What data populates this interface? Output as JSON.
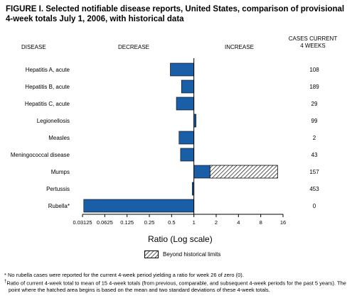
{
  "title": "FIGURE I. Selected notifiable disease reports, United States, comparison of provisional 4-week totals July 1, 2006, with historical data",
  "headers": {
    "disease": "DISEASE",
    "decrease": "DECREASE",
    "increase": "INCREASE",
    "cases_line1": "CASES CURRENT",
    "cases_line2": "4 WEEKS"
  },
  "legend": {
    "label": "Beyond historical limits"
  },
  "footnotes": {
    "star": "* No rubella cases were reported for the current 4-week period yielding a ratio for week 26 of zero (0).",
    "dagger_mark": "†",
    "dagger": "Ratio of current 4-week total to mean of 15 4-week totals (from previous, comparable, and subsequent 4-week periods for the past 5 years). The point where the hatched area begins is based on the mean and two standard deviations of these 4-week totals."
  },
  "chart_data": {
    "type": "bar",
    "orientation": "horizontal",
    "xlabel": "Ratio (Log scale)",
    "x_scale": "log2",
    "x_ticks": [
      "0.03125",
      "0.0625",
      "0.125",
      "0.25",
      "0.5",
      "1",
      "2",
      "4",
      "8",
      "16"
    ],
    "xlim": [
      0.03125,
      16
    ],
    "colors": {
      "bar": "#1a5ea8",
      "hatch_fill": "#ffffff"
    },
    "categories": [
      "Hepatitis A, acute",
      "Hepatitis B, acute",
      "Hepatitis C, acute",
      "Legionellosis",
      "Measles",
      "Meningococcal disease",
      "Mumps",
      "Pertussis",
      "Rubella*"
    ],
    "ratios": [
      0.48,
      0.68,
      0.58,
      1.07,
      0.63,
      0.66,
      1.65,
      0.95,
      0.0325
    ],
    "beyond_historical_limits_to": [
      null,
      null,
      null,
      null,
      null,
      null,
      13.5,
      null,
      null
    ],
    "cases_current_4_weeks": [
      "108",
      "189",
      "29",
      "99",
      "2",
      "43",
      "157",
      "453",
      "0"
    ]
  }
}
